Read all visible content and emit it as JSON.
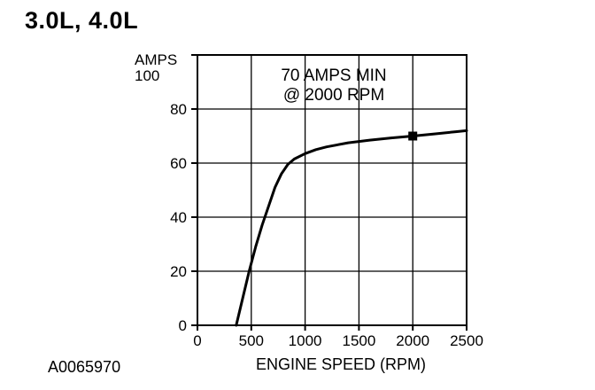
{
  "page": {
    "heading": "3.0L, 4.0L",
    "figure_id": "A0065970"
  },
  "chart_data": {
    "type": "line",
    "title": "",
    "xlabel": "ENGINE SPEED (RPM)",
    "ylabel": "AMPS",
    "xlim": [
      0,
      2500
    ],
    "ylim": [
      0,
      100
    ],
    "xticks": [
      "0",
      "500",
      "1000",
      "1500",
      "2000",
      "2500"
    ],
    "yticks": [
      "0",
      "20",
      "40",
      "60",
      "80",
      "100"
    ],
    "grid": true,
    "annotation": [
      "70 AMPS MIN",
      "@ 2000 RPM"
    ],
    "marker": {
      "x": 2000,
      "y": 70
    },
    "series": [
      {
        "x": [
          360,
          420,
          480,
          540,
          600,
          660,
          720,
          780,
          840,
          900,
          1000,
          1100,
          1200,
          1400,
          1600,
          1800,
          2000,
          2200,
          2400,
          2500
        ],
        "y": [
          0,
          10,
          20,
          29,
          37,
          44,
          51,
          56,
          59.5,
          61.5,
          63.5,
          65,
          66,
          67.5,
          68.5,
          69.3,
          70,
          70.8,
          71.6,
          72
        ]
      }
    ]
  }
}
